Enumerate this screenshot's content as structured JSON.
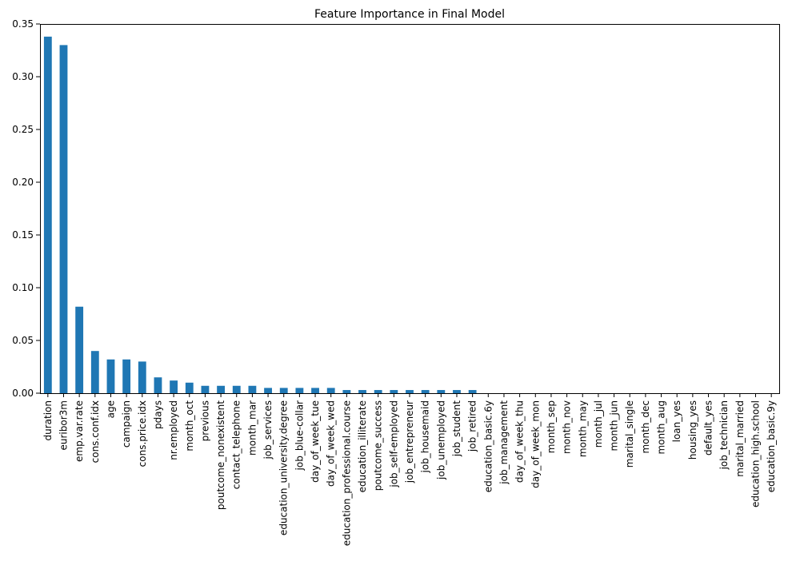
{
  "chart_data": {
    "type": "bar",
    "title": "Feature Importance in Final Model",
    "xlabel": "",
    "ylabel": "",
    "ylim": [
      0,
      0.35
    ],
    "yticks": [
      0.0,
      0.05,
      0.1,
      0.15,
      0.2,
      0.25,
      0.3,
      0.35
    ],
    "ytick_labels": [
      "0.00",
      "0.05",
      "0.10",
      "0.15",
      "0.20",
      "0.25",
      "0.30",
      "0.35"
    ],
    "grid": false,
    "bar_color": "#1f77b4",
    "categories": [
      "duration",
      "euribor3m",
      "emp.var.rate",
      "cons.conf.idx",
      "age",
      "campaign",
      "cons.price.idx",
      "pdays",
      "nr.employed",
      "month_oct",
      "previous",
      "poutcome_nonexistent",
      "contact_telephone",
      "month_mar",
      "job_services",
      "education_university.degree",
      "job_blue-collar",
      "day_of_week_tue",
      "day_of_week_wed",
      "education_professional.course",
      "education_illiterate",
      "poutcome_success",
      "job_self-employed",
      "job_entrepreneur",
      "job_housemaid",
      "job_unemployed",
      "job_student",
      "job_retired",
      "education_basic.6y",
      "job_management",
      "day_of_week_thu",
      "day_of_week_mon",
      "month_sep",
      "month_nov",
      "month_may",
      "month_jul",
      "month_jun",
      "marital_single",
      "month_dec",
      "month_aug",
      "loan_yes",
      "housing_yes",
      "default_yes",
      "job_technician",
      "marital_married",
      "education_high.school",
      "education_basic.9y"
    ],
    "values": [
      0.338,
      0.33,
      0.082,
      0.04,
      0.032,
      0.032,
      0.03,
      0.015,
      0.012,
      0.01,
      0.007,
      0.007,
      0.007,
      0.007,
      0.005,
      0.005,
      0.005,
      0.005,
      0.005,
      0.003,
      0.003,
      0.003,
      0.003,
      0.003,
      0.003,
      0.003,
      0.003,
      0.003,
      0.0,
      0.0,
      0.0,
      0.0,
      0.0,
      0.0,
      0.0,
      0.0,
      0.0,
      0.0,
      0.0,
      0.0,
      0.0,
      0.0,
      0.0,
      0.0,
      0.0,
      0.0,
      0.0
    ]
  }
}
